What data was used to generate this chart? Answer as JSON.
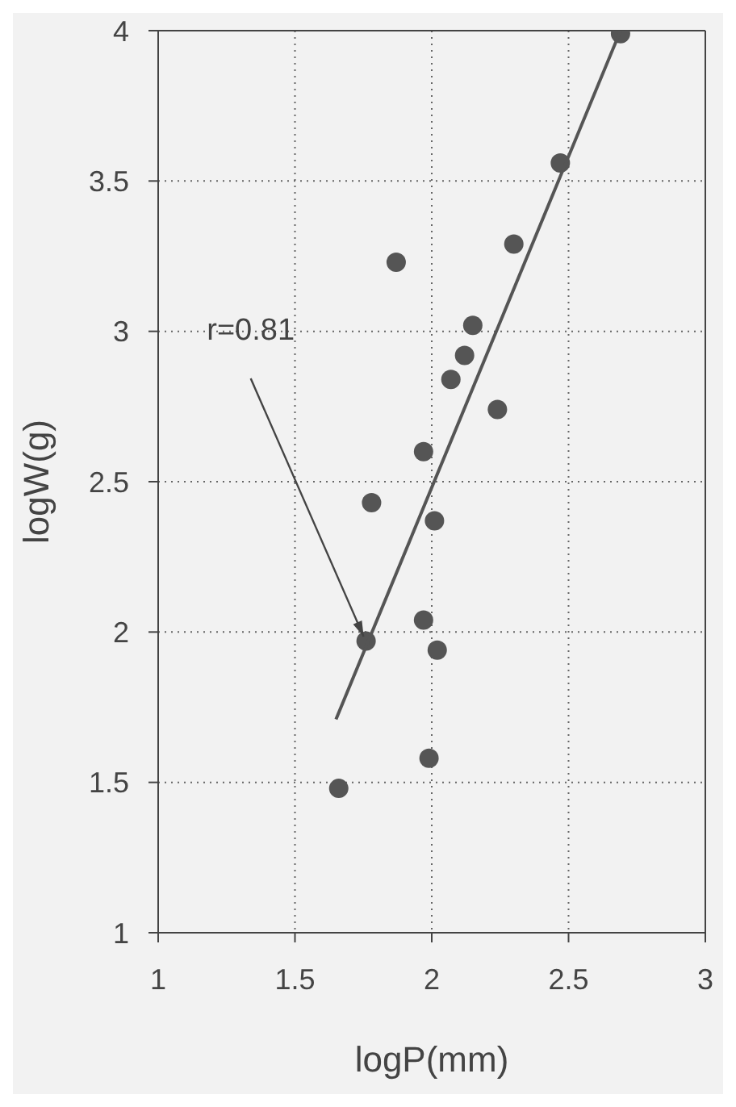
{
  "chart_data": {
    "type": "scatter",
    "xlabel": "logP(mm)",
    "ylabel": "logW(g)",
    "xlim": [
      1,
      3
    ],
    "xticks": [
      1,
      1.5,
      2,
      2.5,
      3
    ],
    "ylim": [
      1,
      4
    ],
    "yticks": [
      1,
      1.5,
      2,
      2.5,
      3,
      3.5,
      4
    ],
    "grid": true,
    "marker": "circle",
    "annotations": [
      "r=0.81"
    ],
    "series": [
      {
        "color": "#555555",
        "x": [
          2.69,
          2.47,
          2.3,
          1.87,
          2.15,
          2.12,
          2.07,
          2.24,
          1.97,
          1.78,
          2.01,
          1.97,
          1.76,
          2.02,
          1.99,
          1.66
        ],
        "values": [
          3.99,
          3.56,
          3.29,
          3.23,
          3.02,
          2.92,
          2.84,
          2.74,
          2.6,
          2.43,
          2.37,
          2.04,
          1.97,
          1.94,
          1.58,
          1.48
        ]
      },
      {
        "type": "line",
        "marker": "none",
        "color": "#555555",
        "x": [
          1.65,
          2.69
        ],
        "values": [
          1.71,
          4.0
        ]
      }
    ]
  }
}
